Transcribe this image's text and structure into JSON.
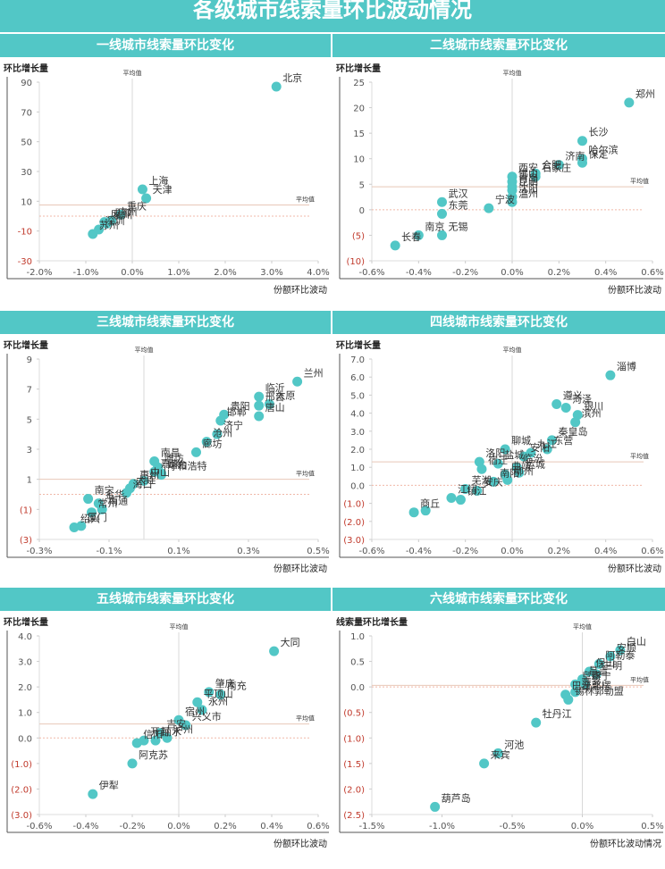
{
  "page": {
    "title": "各级城市线索量环比波动情况",
    "colors": {
      "accent": "#52c7c6",
      "point": "#52c7c6",
      "negative_tick": "#c0392b",
      "avg_x_line": "#d9d9d9",
      "avg_y_line": "#e8c8b8",
      "zero_line": "#f0b8a8"
    }
  },
  "chart_data": [
    {
      "type": "scatter",
      "title": "一线城市线索量环比变化",
      "xlabel": "份额环比波动",
      "ylabel": "环比增长量",
      "xlim": [
        -2.0,
        4.0
      ],
      "ylim": [
        -30,
        90
      ],
      "xticks": [
        -2.0,
        -1.0,
        0.0,
        1.0,
        2.0,
        3.0,
        4.0
      ],
      "xtick_labels": [
        "-2.0%",
        "-1.0%",
        "0.0%",
        "1.0%",
        "2.0%",
        "3.0%",
        "4.0%"
      ],
      "yticks": [
        -30,
        -10,
        10,
        30,
        50,
        70,
        90
      ],
      "ytick_labels": [
        "-30",
        "-10",
        "10",
        "30",
        "50",
        "70",
        "90"
      ],
      "avg_x": 0.0,
      "avg_x_label": "平均值",
      "avg_y": 7.5,
      "avg_y_label": "平均值",
      "zero_line": 0,
      "points": [
        {
          "name": "北京",
          "x": 3.1,
          "y": 87
        },
        {
          "name": "上海",
          "x": 0.22,
          "y": 18
        },
        {
          "name": "天津",
          "x": 0.3,
          "y": 12
        },
        {
          "name": "重庆",
          "x": -0.25,
          "y": 1
        },
        {
          "name": "成都",
          "x": -0.6,
          "y": -4
        },
        {
          "name": "广州",
          "x": -0.45,
          "y": -3
        },
        {
          "name": "杭州",
          "x": -0.55,
          "y": -5
        },
        {
          "name": "深圳",
          "x": -0.72,
          "y": -9
        },
        {
          "name": "苏州",
          "x": -0.85,
          "y": -12
        }
      ]
    },
    {
      "type": "scatter",
      "title": "二线城市线索量环比变化",
      "xlabel": "份额环比波动",
      "ylabel": "环比增长量",
      "xlim": [
        -0.6,
        0.6
      ],
      "ylim": [
        -10,
        25
      ],
      "xticks": [
        -0.6,
        -0.4,
        -0.2,
        0.0,
        0.2,
        0.4,
        0.6
      ],
      "xtick_labels": [
        "-0.6%",
        "-0.4%",
        "-0.2%",
        "0.0%",
        "0.2%",
        "0.4%",
        "0.6%"
      ],
      "yticks": [
        -10,
        -5,
        0,
        5,
        10,
        15,
        20,
        25
      ],
      "ytick_labels": [
        "(10)",
        "(5)",
        "0",
        "5",
        "10",
        "15",
        "20",
        "25"
      ],
      "avg_x": 0.0,
      "avg_x_label": "平均值",
      "avg_y": 4.5,
      "avg_y_label": "平均值",
      "zero_line": 0,
      "points": [
        {
          "name": "郑州",
          "x": 0.5,
          "y": 21
        },
        {
          "name": "长沙",
          "x": 0.3,
          "y": 13.5
        },
        {
          "name": "哈尔滨",
          "x": 0.3,
          "y": 10
        },
        {
          "name": "保定",
          "x": 0.3,
          "y": 9.2
        },
        {
          "name": "济南",
          "x": 0.2,
          "y": 8.8
        },
        {
          "name": "石家庄",
          "x": 0.1,
          "y": 6.5
        },
        {
          "name": "合肥",
          "x": 0.1,
          "y": 7.1
        },
        {
          "name": "西安",
          "x": 0.0,
          "y": 6.5
        },
        {
          "name": "佛山",
          "x": 0.0,
          "y": 5.5
        },
        {
          "name": "青岛",
          "x": 0.0,
          "y": 4.5
        },
        {
          "name": "昆明",
          "x": 0.0,
          "y": 3.8
        },
        {
          "name": "沈阳",
          "x": 0.0,
          "y": 2.5
        },
        {
          "name": "温州",
          "x": 0.0,
          "y": 1.5
        },
        {
          "name": "宁波",
          "x": -0.1,
          "y": 0.3
        },
        {
          "name": "武汉",
          "x": -0.3,
          "y": 1.5
        },
        {
          "name": "东莞",
          "x": -0.3,
          "y": -0.8
        },
        {
          "name": "无锡",
          "x": -0.3,
          "y": -5
        },
        {
          "name": "南京",
          "x": -0.4,
          "y": -5
        },
        {
          "name": "长春",
          "x": -0.5,
          "y": -7
        }
      ]
    },
    {
      "type": "scatter",
      "title": "三线城市线索量环比变化",
      "xlabel": "份额环比波动",
      "ylabel": "环比增长量",
      "xlim": [
        -0.3,
        0.5
      ],
      "ylim": [
        -3,
        9
      ],
      "xticks": [
        -0.3,
        -0.1,
        0.1,
        0.3,
        0.5
      ],
      "xtick_labels": [
        "-0.3%",
        "-0.1%",
        "0.1%",
        "0.3%",
        "0.5%"
      ],
      "yticks": [
        -3,
        -1,
        1,
        3,
        5,
        7,
        9
      ],
      "ytick_labels": [
        "(3)",
        "(1)",
        "1",
        "3",
        "5",
        "7",
        "9"
      ],
      "avg_x": 0.0,
      "avg_x_label": "平均值",
      "avg_y": 1.0,
      "avg_y_label": "平均值",
      "zero_line": 0,
      "points": [
        {
          "name": "兰州",
          "x": 0.44,
          "y": 7.5
        },
        {
          "name": "临沂",
          "x": 0.33,
          "y": 6.5
        },
        {
          "name": "太原",
          "x": 0.36,
          "y": 6.0
        },
        {
          "name": "邢台",
          "x": 0.33,
          "y": 5.9
        },
        {
          "name": "唐山",
          "x": 0.33,
          "y": 5.2
        },
        {
          "name": "贵阳",
          "x": 0.23,
          "y": 5.3
        },
        {
          "name": "邯郸",
          "x": 0.22,
          "y": 4.9
        },
        {
          "name": "济宁",
          "x": 0.21,
          "y": 4.0
        },
        {
          "name": "沧州",
          "x": 0.18,
          "y": 3.5
        },
        {
          "name": "廊坊",
          "x": 0.15,
          "y": 2.8
        },
        {
          "name": "呼和浩特",
          "x": 0.05,
          "y": 1.3
        },
        {
          "name": "南昌",
          "x": 0.03,
          "y": 2.2
        },
        {
          "name": "潍坊",
          "x": 0.04,
          "y": 1.8
        },
        {
          "name": "嘉兴",
          "x": 0.03,
          "y": 1.5
        },
        {
          "name": "中山",
          "x": 0.0,
          "y": 0.9
        },
        {
          "name": "烟台",
          "x": 0.05,
          "y": 1.4
        },
        {
          "name": "惠州",
          "x": -0.03,
          "y": 0.7
        },
        {
          "name": "大连",
          "x": -0.04,
          "y": 0.4
        },
        {
          "name": "海口",
          "x": -0.05,
          "y": 0.1
        },
        {
          "name": "南宁",
          "x": -0.16,
          "y": -0.3
        },
        {
          "name": "金华",
          "x": -0.13,
          "y": -0.6
        },
        {
          "name": "南通",
          "x": -0.12,
          "y": -1.0
        },
        {
          "name": "常州",
          "x": -0.15,
          "y": -1.2
        },
        {
          "name": "厦门",
          "x": -0.18,
          "y": -2.1
        },
        {
          "name": "绍兴",
          "x": -0.2,
          "y": -2.2
        }
      ]
    },
    {
      "type": "scatter",
      "title": "四线城市线索量环比变化",
      "xlabel": "份额环比波动",
      "ylabel": "环比增长量",
      "xlim": [
        -0.6,
        0.6
      ],
      "ylim": [
        -3.0,
        7.0
      ],
      "xticks": [
        -0.6,
        -0.4,
        -0.2,
        0.0,
        0.2,
        0.4,
        0.6
      ],
      "xtick_labels": [
        "-0.6%",
        "-0.4%",
        "-0.2%",
        "0.0%",
        "0.2%",
        "0.4%",
        "0.6%"
      ],
      "yticks": [
        -3,
        -2,
        -1,
        0,
        1,
        2,
        3,
        4,
        5,
        6,
        7
      ],
      "ytick_labels": [
        "(3.0)",
        "(2.0)",
        "(1.0)",
        "0.0",
        "1.0",
        "2.0",
        "3.0",
        "4.0",
        "5.0",
        "6.0",
        "7.0"
      ],
      "avg_x": 0.0,
      "avg_x_label": "平均值",
      "avg_y": 1.3,
      "avg_y_label": "平均值",
      "zero_line": 0,
      "points": [
        {
          "name": "淄博",
          "x": 0.42,
          "y": 6.1
        },
        {
          "name": "遵义",
          "x": 0.19,
          "y": 4.5
        },
        {
          "name": "菏泽",
          "x": 0.23,
          "y": 4.3
        },
        {
          "name": "银川",
          "x": 0.28,
          "y": 3.9
        },
        {
          "name": "滨州",
          "x": 0.27,
          "y": 3.5
        },
        {
          "name": "秦皇岛",
          "x": 0.17,
          "y": 2.5
        },
        {
          "name": "东营",
          "x": 0.15,
          "y": 2.0
        },
        {
          "name": "九江",
          "x": 0.08,
          "y": 1.8
        },
        {
          "name": "安阳",
          "x": 0.05,
          "y": 1.6
        },
        {
          "name": "聊城",
          "x": -0.03,
          "y": 2.0
        },
        {
          "name": "临汾",
          "x": 0.02,
          "y": 1.0
        },
        {
          "name": "盐城",
          "x": -0.06,
          "y": 1.2
        },
        {
          "name": "洛阳",
          "x": -0.14,
          "y": 1.3
        },
        {
          "name": "宿迁",
          "x": -0.13,
          "y": 0.9
        },
        {
          "name": "曲靖",
          "x": -0.03,
          "y": 0.6
        },
        {
          "name": "运城",
          "x": 0.03,
          "y": 0.7
        },
        {
          "name": "南阳",
          "x": -0.08,
          "y": 0.2
        },
        {
          "name": "柳州",
          "x": -0.02,
          "y": 0.3
        },
        {
          "name": "芜湖",
          "x": -0.2,
          "y": -0.2
        },
        {
          "name": "安庆",
          "x": -0.15,
          "y": -0.3
        },
        {
          "name": "江门",
          "x": -0.26,
          "y": -0.7
        },
        {
          "name": "镇江",
          "x": -0.22,
          "y": -0.8
        },
        {
          "name": "商丘",
          "x": -0.42,
          "y": -1.5
        },
        {
          "name": "商丘2",
          "x": -0.37,
          "y": -1.4
        }
      ]
    },
    {
      "type": "scatter",
      "title": "五线城市线索量环比变化",
      "xlabel": "份额环比波动",
      "ylabel": "环比增长量",
      "xlim": [
        -0.6,
        0.6
      ],
      "ylim": [
        -3.0,
        4.0
      ],
      "xticks": [
        -0.6,
        -0.4,
        -0.2,
        0.0,
        0.2,
        0.4,
        0.6
      ],
      "xtick_labels": [
        "-0.6%",
        "-0.4%",
        "-0.2%",
        "0.0%",
        "0.2%",
        "0.4%",
        "0.6%"
      ],
      "yticks": [
        -3,
        -2,
        -1,
        0,
        1,
        2,
        3,
        4
      ],
      "ytick_labels": [
        "(3.0)",
        "(2.0)",
        "(1.0)",
        "0.0",
        "1.0",
        "2.0",
        "3.0",
        "4.0"
      ],
      "avg_x": 0.0,
      "avg_x_label": "平均值",
      "avg_y": 0.55,
      "avg_y_label": "平均值",
      "zero_line": 0,
      "points": [
        {
          "name": "大同",
          "x": 0.41,
          "y": 3.4
        },
        {
          "name": "肇庆",
          "x": 0.13,
          "y": 1.8
        },
        {
          "name": "南充",
          "x": 0.18,
          "y": 1.7
        },
        {
          "name": "平顶山",
          "x": 0.08,
          "y": 1.4
        },
        {
          "name": "永州",
          "x": 0.1,
          "y": 1.1
        },
        {
          "name": "宿州",
          "x": 0.0,
          "y": 0.7
        },
        {
          "name": "兴义市",
          "x": 0.03,
          "y": 0.5
        },
        {
          "name": "吉安",
          "x": -0.08,
          "y": 0.2
        },
        {
          "name": "泸州",
          "x": -0.05,
          "y": 0.0
        },
        {
          "name": "开封",
          "x": -0.15,
          "y": -0.1
        },
        {
          "name": "信阳",
          "x": -0.18,
          "y": -0.2
        },
        {
          "name": "丽水",
          "x": -0.1,
          "y": -0.1
        },
        {
          "name": "阿克苏",
          "x": -0.2,
          "y": -1.0
        },
        {
          "name": "伊犁",
          "x": -0.37,
          "y": -2.2
        }
      ]
    },
    {
      "type": "scatter",
      "title": "六线城市线索量环比变化",
      "xlabel": "份额环比波动情况",
      "ylabel": "线索量环比增长量",
      "xlim": [
        -1.5,
        0.5
      ],
      "ylim": [
        -2.5,
        1.0
      ],
      "xticks": [
        -1.5,
        -1.0,
        -0.5,
        0.0,
        0.5
      ],
      "xtick_labels": [
        "-1.5%",
        "-1.0%",
        "-0.5%",
        "0.0%",
        "0.5%"
      ],
      "yticks": [
        -2.5,
        -2.0,
        -1.5,
        -1.0,
        -0.5,
        0.0,
        0.5,
        1.0
      ],
      "ytick_labels": [
        "(2.5)",
        "(2.0)",
        "(1.5)",
        "(1.0)",
        "(0.5)",
        "0.0",
        "0.5",
        "1.0"
      ],
      "avg_x": 0.0,
      "avg_x_label": "平均值",
      "avg_y": 0.03,
      "avg_y_label": "平均值",
      "zero_line": 0,
      "points": [
        {
          "name": "白山",
          "x": 0.27,
          "y": 0.72
        },
        {
          "name": "安顺",
          "x": 0.2,
          "y": 0.6
        },
        {
          "name": "阿勒泰",
          "x": 0.12,
          "y": 0.45
        },
        {
          "name": "保山",
          "x": 0.05,
          "y": 0.3
        },
        {
          "name": "三明",
          "x": 0.1,
          "y": 0.25
        },
        {
          "name": "昌吉",
          "x": 0.0,
          "y": 0.15
        },
        {
          "name": "遂宁",
          "x": 0.02,
          "y": 0.05
        },
        {
          "name": "阜新",
          "x": -0.05,
          "y": 0.05
        },
        {
          "name": "萍乡",
          "x": -0.05,
          "y": -0.1
        },
        {
          "name": "巴音郭楞",
          "x": -0.12,
          "y": -0.15
        },
        {
          "name": "锡林郭勒盟",
          "x": -0.1,
          "y": -0.25
        },
        {
          "name": "牡丹江",
          "x": -0.33,
          "y": -0.7
        },
        {
          "name": "河池",
          "x": -0.6,
          "y": -1.3
        },
        {
          "name": "来宾",
          "x": -0.7,
          "y": -1.5
        },
        {
          "name": "葫芦岛",
          "x": -1.05,
          "y": -2.35
        }
      ]
    }
  ]
}
